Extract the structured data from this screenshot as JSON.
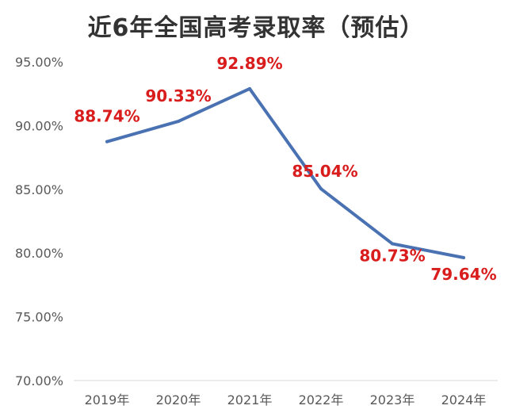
{
  "chart_data": {
    "type": "line",
    "title": "近6年全国高考录取率（预估）",
    "xlabel": "",
    "ylabel": "",
    "categories": [
      "2019年",
      "2020年",
      "2021年",
      "2022年",
      "2023年",
      "2024年"
    ],
    "series": [
      {
        "values": [
          88.74,
          90.33,
          92.89,
          85.04,
          80.73,
          79.64
        ],
        "labels": [
          "88.74%",
          "90.33%",
          "92.89%",
          "85.04%",
          "80.73%",
          "79.64%"
        ]
      }
    ],
    "ylim": [
      70,
      95
    ],
    "yticks": [
      "70.00%",
      "75.00%",
      "80.00%",
      "85.00%",
      "90.00%",
      "95.00%"
    ],
    "grid": false,
    "line_color": "#4a72b2",
    "label_color": "#d91c1c"
  }
}
